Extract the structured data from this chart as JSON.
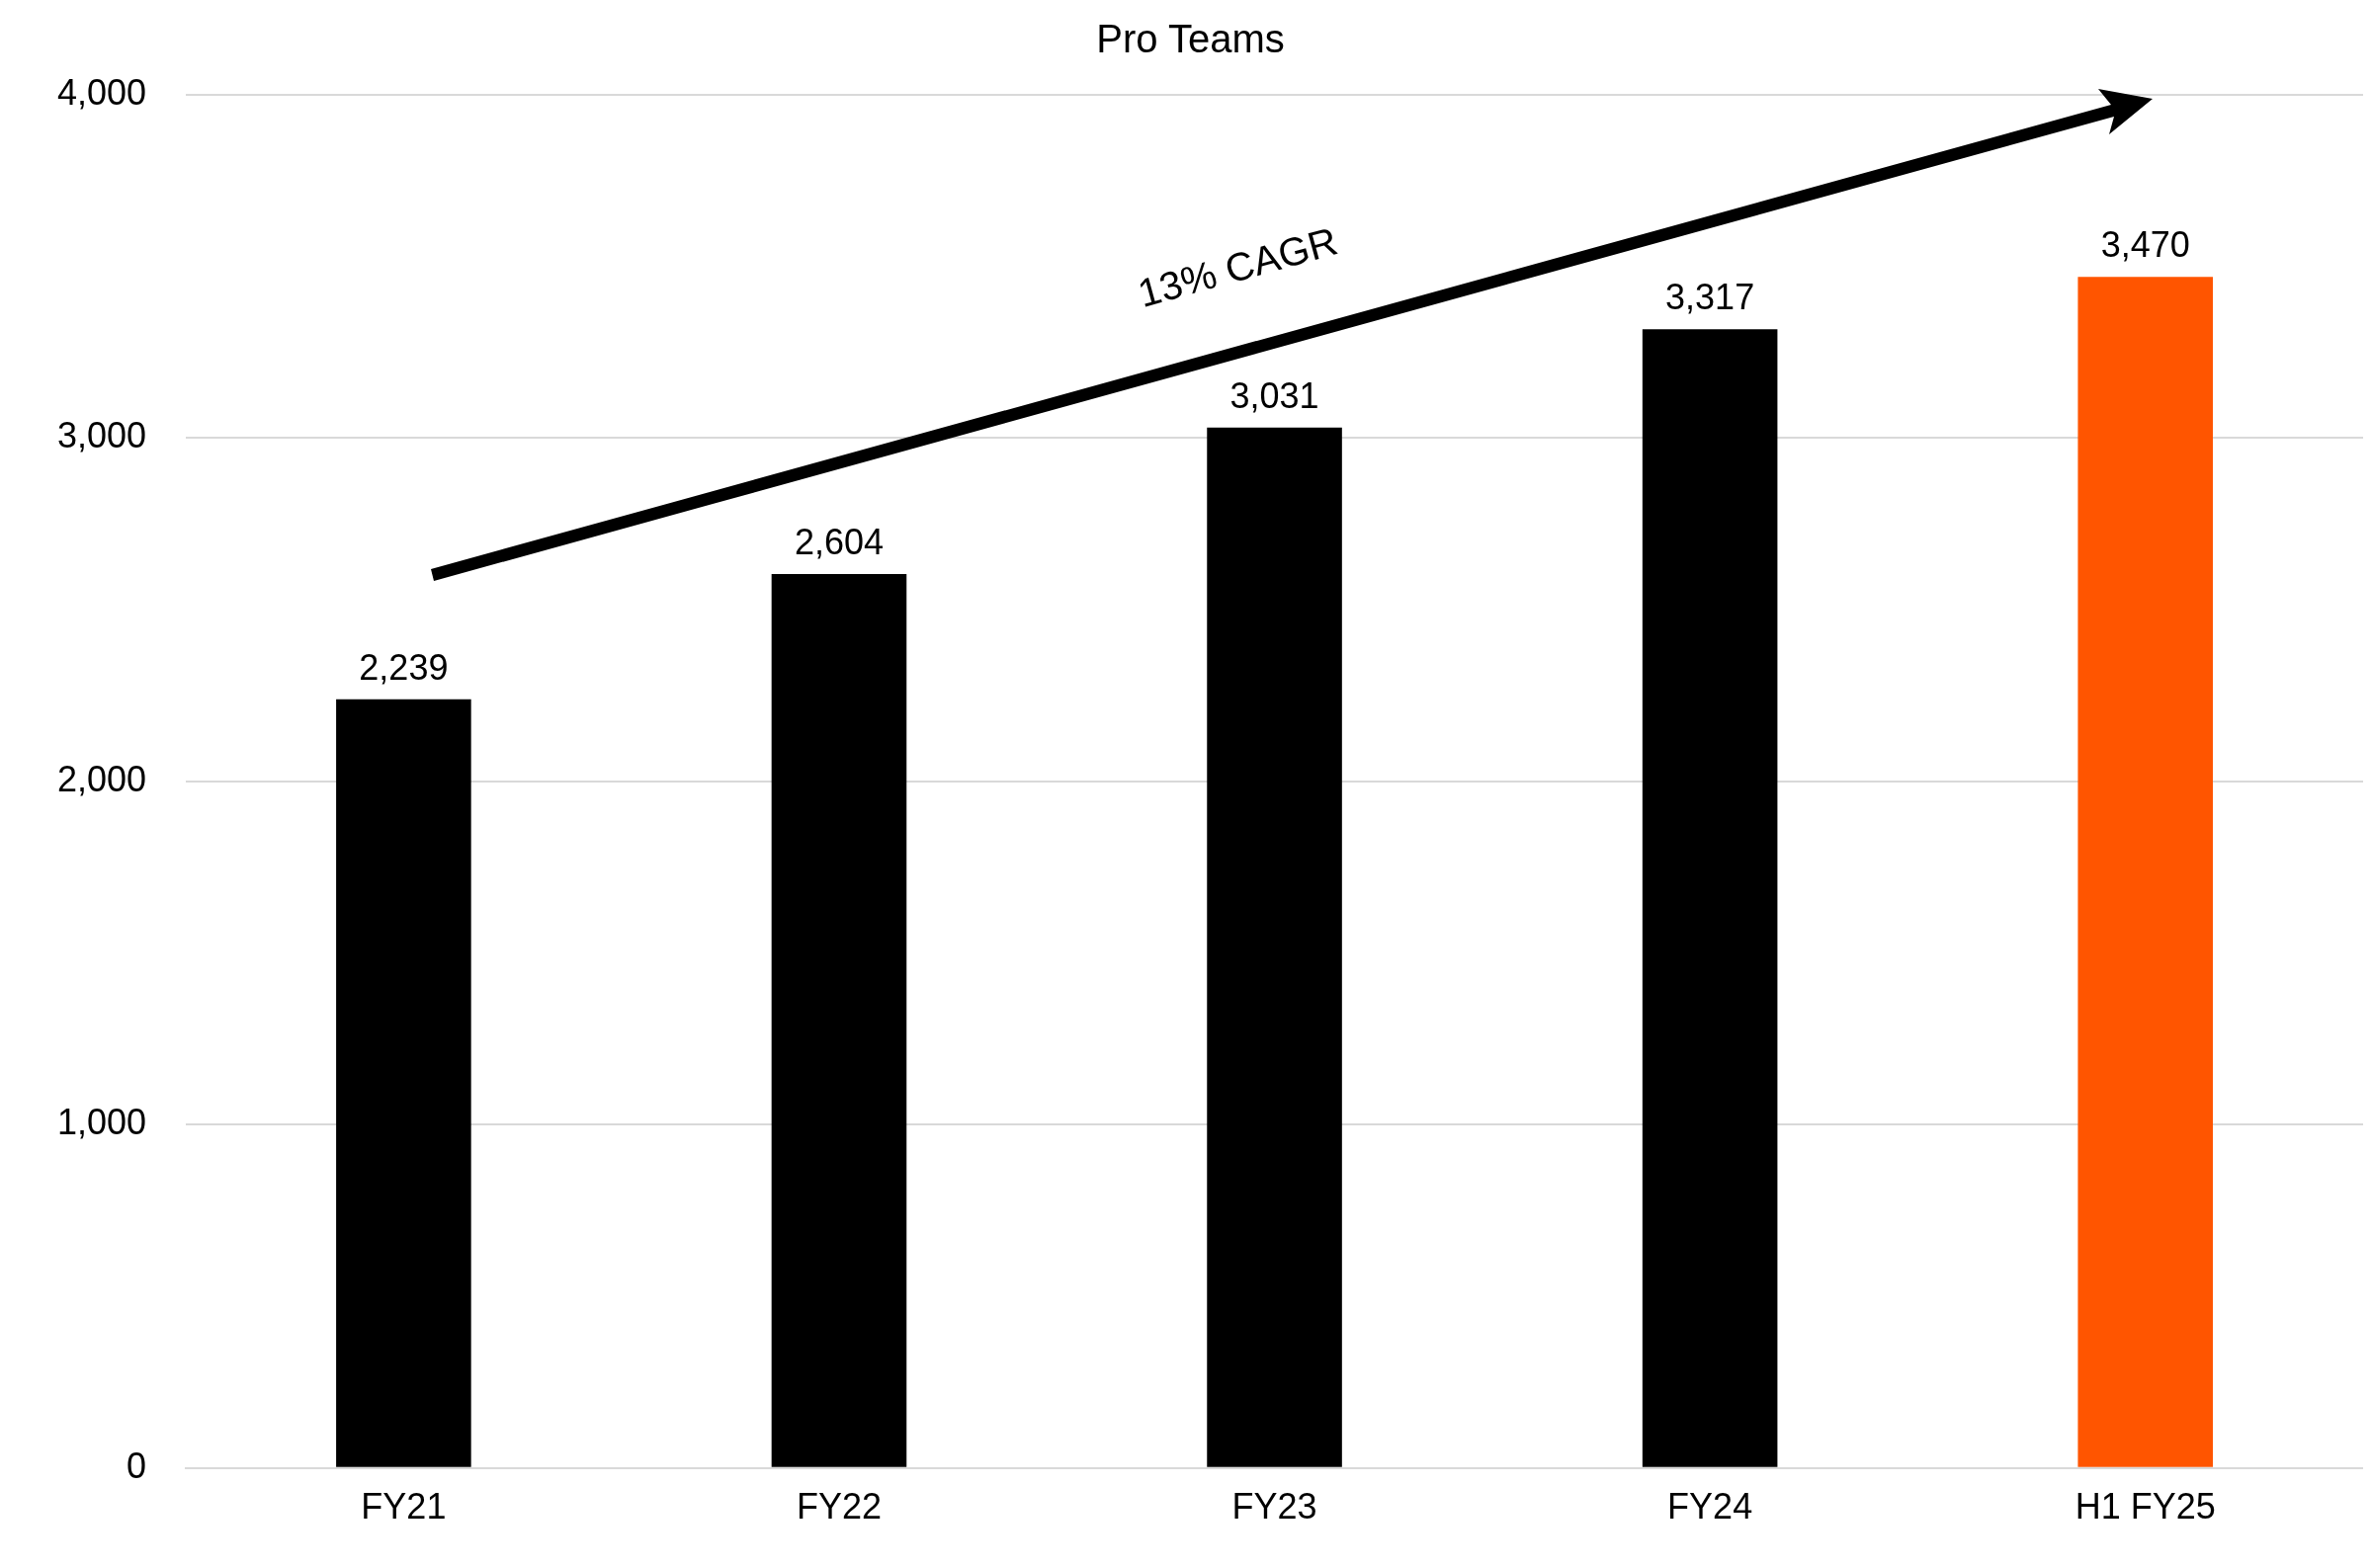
{
  "chart_data": {
    "type": "bar",
    "title": "Pro Teams",
    "categories": [
      "FY21",
      "FY22",
      "FY23",
      "FY24",
      "H1 FY25"
    ],
    "values": [
      2239,
      2604,
      3031,
      3317,
      3470
    ],
    "value_labels": [
      "2,239",
      "2,604",
      "3,031",
      "3,317",
      "3,470"
    ],
    "colors": [
      "#000000",
      "#000000",
      "#000000",
      "#000000",
      "#ff5500"
    ],
    "ylim": [
      0,
      4000
    ],
    "yticks": [
      0,
      {
        "value": 1000,
        "label": "1,000"
      },
      {
        "value": 2000,
        "label": "2,000"
      },
      {
        "value": 3000,
        "label": "3,000"
      },
      {
        "value": 4000,
        "label": "4,000"
      }
    ],
    "grid": "y",
    "legend": false,
    "annotations": [
      "13% CAGR"
    ]
  }
}
